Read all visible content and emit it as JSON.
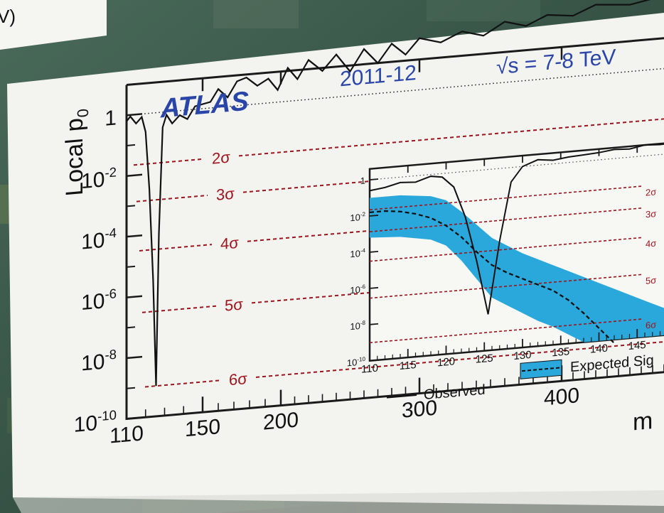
{
  "corner_label": "V)",
  "chart_data": [
    {
      "type": "line",
      "title": "ATLAS",
      "subtitle": "2011-12",
      "energy_label": "√s = 7-8 TeV",
      "ylabel": "Local p0",
      "ylabel_main": "Local p",
      "ylabel_sub": "0",
      "xlabel": "m",
      "yscale": "log",
      "ylim": [
        1e-10,
        10
      ],
      "xlim": [
        110,
        600
      ],
      "x_ticks": [
        {
          "value": 110,
          "label": "110"
        },
        {
          "value": 150,
          "label": "150"
        },
        {
          "value": 200,
          "label": "200"
        },
        {
          "value": 300,
          "label": "300"
        },
        {
          "value": 400,
          "label": "400"
        }
      ],
      "y_ticks": [
        {
          "exp": 0,
          "label": "1"
        },
        {
          "exp": -2,
          "label": "10",
          "sup": "-2"
        },
        {
          "exp": -4,
          "label": "10",
          "sup": "-4"
        },
        {
          "exp": -6,
          "label": "10",
          "sup": "-6"
        },
        {
          "exp": -8,
          "label": "10",
          "sup": "-8"
        },
        {
          "exp": -10,
          "label": "10",
          "sup": "-10"
        }
      ],
      "sigma_lines": [
        {
          "label": "2σ",
          "num": "2",
          "exp": -1.66
        },
        {
          "label": "3σ",
          "num": "3",
          "exp": -2.87
        },
        {
          "label": "4σ",
          "num": "4",
          "exp": -4.5
        },
        {
          "label": "5σ",
          "num": "5",
          "exp": -6.54
        },
        {
          "label": "6σ",
          "num": "6",
          "exp": -9.0
        }
      ],
      "series": [
        {
          "name": "Observed",
          "x": [
            110,
            112,
            115,
            118,
            120,
            122,
            124,
            125.5,
            127,
            129,
            131,
            134,
            138,
            142,
            146,
            150,
            155,
            160,
            166,
            172,
            178,
            185,
            192,
            198,
            205,
            212,
            220,
            230,
            240,
            250,
            260,
            270,
            280,
            290,
            300,
            315,
            330,
            345,
            360,
            375,
            390,
            410,
            430,
            460,
            490,
            520
          ],
          "y_exp": [
            -0.2,
            -0.05,
            -0.3,
            -0.1,
            -0.6,
            -2.5,
            -5.5,
            -9.0,
            -4.0,
            -0.5,
            -0.1,
            -0.4,
            -0.15,
            -0.3,
            0.1,
            0.15,
            0.2,
            0.6,
            0.3,
            0.8,
            0.9,
            0.6,
            0.8,
            0.4,
            1.1,
            0.7,
            1.3,
            0.9,
            1.4,
            0.8,
            1.5,
            1.0,
            1.6,
            1.2,
            1.7,
            1.5,
            1.8,
            1.6,
            2.0,
            1.8,
            2.1,
            2.0,
            2.3,
            2.2,
            2.4,
            2.3
          ]
        }
      ],
      "reference_line": {
        "exp": 0
      }
    },
    {
      "type": "line",
      "inset": true,
      "xlim": [
        110,
        150
      ],
      "ylim": [
        1e-10,
        10
      ],
      "x_ticks": [
        {
          "value": 110,
          "label": "110"
        },
        {
          "value": 115,
          "label": "115"
        },
        {
          "value": 120,
          "label": "120"
        },
        {
          "value": 125,
          "label": "125"
        },
        {
          "value": 130,
          "label": "130"
        },
        {
          "value": 135,
          "label": "135"
        },
        {
          "value": 140,
          "label": "140"
        },
        {
          "value": 145,
          "label": "145"
        }
      ],
      "y_ticks": [
        {
          "exp": 0,
          "label": "1"
        },
        {
          "exp": -2,
          "label": "10",
          "sup": "-2"
        },
        {
          "exp": -4,
          "label": "10",
          "sup": "-4"
        },
        {
          "exp": -6,
          "label": "10",
          "sup": "-6"
        },
        {
          "exp": -8,
          "label": "10",
          "sup": "-8"
        },
        {
          "exp": -10,
          "label": "10",
          "sup": "-10"
        }
      ],
      "sigma_lines": [
        {
          "label": "2σ",
          "num": "2",
          "exp": -1.66
        },
        {
          "label": "3σ",
          "num": "3",
          "exp": -2.87
        },
        {
          "label": "4σ",
          "num": "4",
          "exp": -4.5
        },
        {
          "label": "5σ",
          "num": "5",
          "exp": -6.54
        },
        {
          "label": "6σ",
          "num": "6",
          "exp": -9.0
        }
      ],
      "series": [
        {
          "name": "Observed",
          "x": [
            110,
            112,
            114,
            116,
            118,
            119.5,
            121,
            122.5,
            124,
            125.5,
            127,
            128.5,
            130,
            132,
            134,
            136,
            138,
            140,
            142,
            144,
            146,
            148,
            150
          ],
          "y_exp": [
            -0.6,
            -0.5,
            -0.3,
            -0.35,
            -0.1,
            -0.2,
            -0.8,
            -2.5,
            -5.0,
            -8.0,
            -4.0,
            -0.8,
            0.0,
            0.3,
            0.2,
            0.3,
            0.35,
            0.4,
            0.5,
            0.45,
            0.6,
            0.55,
            0.6
          ]
        },
        {
          "name": "Expected Signal",
          "x": [
            110,
            112,
            114,
            116,
            118,
            120,
            122,
            124,
            126,
            128,
            130,
            132,
            134,
            136,
            138,
            140,
            142
          ],
          "y_exp": [
            -1.8,
            -1.8,
            -1.9,
            -2.1,
            -2.4,
            -2.9,
            -3.6,
            -4.5,
            -5.3,
            -5.8,
            -6.2,
            -6.6,
            -7.0,
            -7.6,
            -8.4,
            -9.3,
            -10.2
          ]
        }
      ],
      "band": {
        "x": [
          110,
          114,
          118,
          120,
          122,
          124,
          126,
          128,
          130,
          132,
          134,
          136,
          138,
          140,
          142,
          144,
          146,
          148,
          150
        ],
        "upper_exp": [
          -1.0,
          -1.0,
          -1.2,
          -1.5,
          -2.2,
          -3.0,
          -3.8,
          -4.3,
          -4.8,
          -5.2,
          -5.6,
          -6.0,
          -6.4,
          -6.8,
          -7.2,
          -7.6,
          -8.0,
          -8.4,
          -8.8
        ],
        "lower_exp": [
          -3.2,
          -3.3,
          -3.6,
          -4.0,
          -4.9,
          -6.0,
          -7.1,
          -7.6,
          -8.1,
          -8.6,
          -9.0,
          -9.5,
          -10.0,
          -10.0,
          -10.0,
          -10.0,
          -10.0,
          -10.0,
          -10.0
        ]
      },
      "legend": {
        "observed_label": "Observed",
        "expected_label": "Expected Sig"
      }
    }
  ],
  "colors": {
    "axis": "#1a1a1a",
    "sigma": "#a0141c",
    "band": "#2aa8dc",
    "title_blue": "#2a45a8",
    "panel": "#f3f3f0"
  }
}
